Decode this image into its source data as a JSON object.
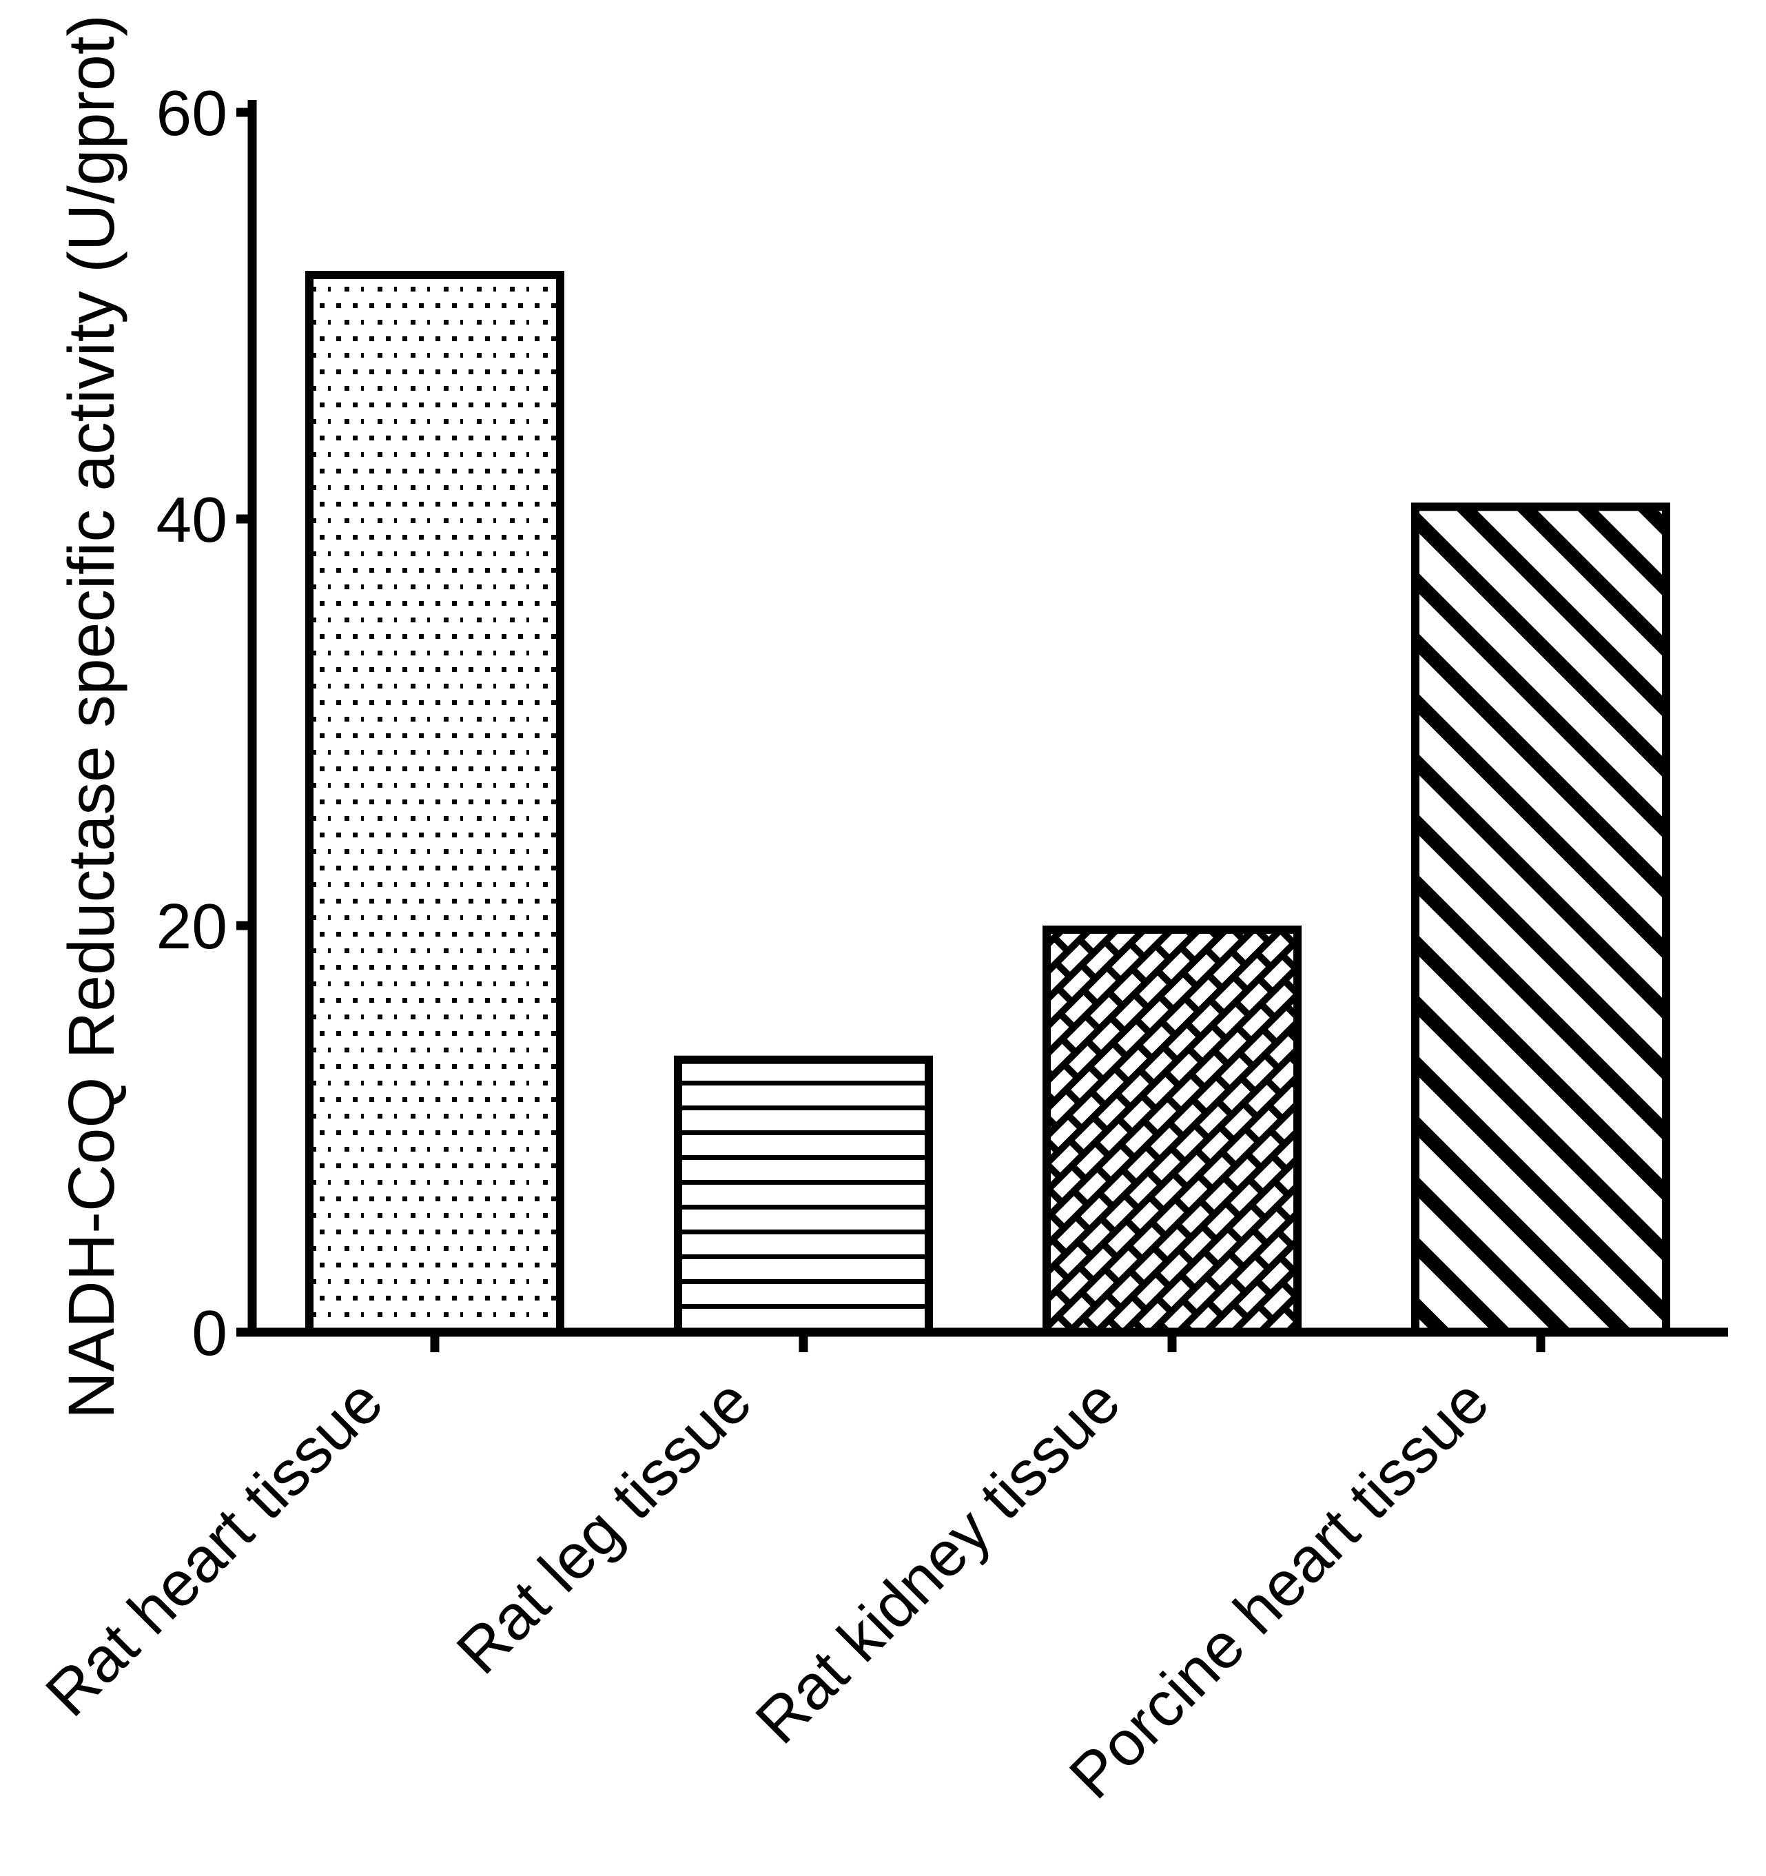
{
  "figure": {
    "background_color": "#ffffff",
    "foreground_color": "#000000"
  },
  "chart_data": {
    "type": "bar",
    "title": "",
    "xlabel": "",
    "ylabel": "NADH-CoQ Reductase specific activity (U/gprot)",
    "categories": [
      "Rat heart tissue",
      "Rat leg tissue",
      "Rat kidney tissue",
      "Porcine heart tissue"
    ],
    "values": [
      52,
      13.4,
      19.8,
      40.6
    ],
    "units": "U/gprot",
    "bar_fill_patterns": [
      "dotted",
      "horizontal-lines",
      "diagonal-bricks",
      "diagonal-stripes"
    ],
    "bar_outline_color": "#000000",
    "bar_fill_background": "#ffffff",
    "ylim": [
      0,
      60
    ],
    "yticks": [
      60,
      40,
      20,
      0
    ],
    "grid": false,
    "legend": "none"
  }
}
